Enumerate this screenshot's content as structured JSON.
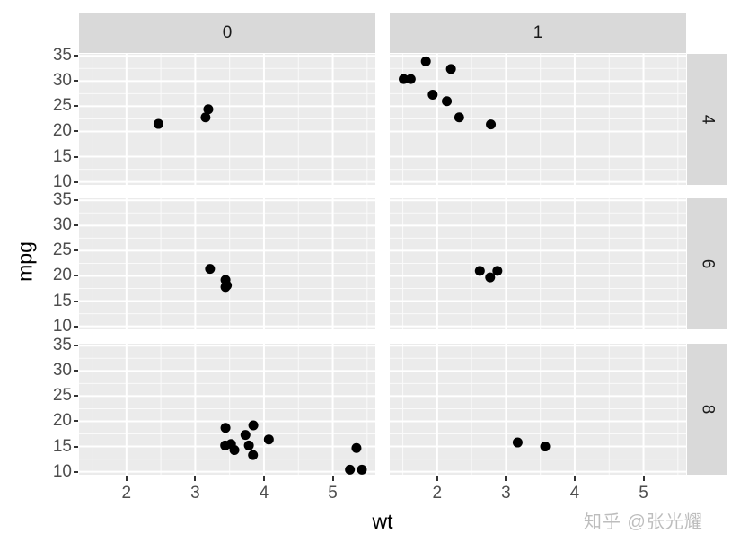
{
  "chart_data": {
    "type": "scatter",
    "title": "",
    "xlabel": "wt",
    "ylabel": "mpg",
    "xlim": [
      1.31,
      5.62
    ],
    "ylim": [
      9.4,
      35.4
    ],
    "x_ticks": [
      2,
      3,
      4,
      5
    ],
    "y_ticks": [
      10,
      15,
      20,
      25,
      30,
      35
    ],
    "grid": true,
    "facet_cols": [
      "0",
      "1"
    ],
    "facet_rows": [
      "4",
      "6",
      "8"
    ],
    "panels": [
      {
        "col": "0",
        "row": "4",
        "points": [
          [
            2.465,
            21.5
          ],
          [
            3.19,
            24.4
          ],
          [
            3.15,
            22.8
          ]
        ]
      },
      {
        "col": "1",
        "row": "4",
        "points": [
          [
            2.32,
            22.8
          ],
          [
            2.2,
            32.4
          ],
          [
            1.615,
            30.4
          ],
          [
            1.835,
            33.9
          ],
          [
            1.935,
            27.3
          ],
          [
            2.14,
            26.0
          ],
          [
            1.513,
            30.4
          ],
          [
            2.78,
            21.4
          ]
        ]
      },
      {
        "col": "0",
        "row": "6",
        "points": [
          [
            3.215,
            21.4
          ],
          [
            3.46,
            18.1
          ],
          [
            3.44,
            19.2
          ],
          [
            3.44,
            17.8
          ]
        ]
      },
      {
        "col": "1",
        "row": "6",
        "points": [
          [
            2.62,
            21.0
          ],
          [
            2.875,
            21.0
          ],
          [
            2.77,
            19.7
          ]
        ]
      },
      {
        "col": "0",
        "row": "8",
        "points": [
          [
            3.44,
            18.7
          ],
          [
            3.57,
            14.3
          ],
          [
            4.07,
            16.4
          ],
          [
            3.73,
            17.3
          ],
          [
            3.78,
            15.2
          ],
          [
            5.25,
            10.4
          ],
          [
            5.424,
            10.4
          ],
          [
            5.345,
            14.7
          ],
          [
            3.52,
            15.5
          ],
          [
            3.435,
            15.2
          ],
          [
            3.84,
            13.3
          ],
          [
            3.845,
            19.2
          ]
        ]
      },
      {
        "col": "1",
        "row": "8",
        "points": [
          [
            3.17,
            15.8
          ],
          [
            3.57,
            15.0
          ]
        ]
      }
    ]
  },
  "labels": {
    "x_axis": "wt",
    "y_axis": "mpg",
    "strip_top": [
      "0",
      "1"
    ],
    "strip_right": [
      "4",
      "6",
      "8"
    ],
    "x_ticks": [
      "2",
      "3",
      "4",
      "5"
    ],
    "y_ticks": [
      "35",
      "30",
      "25",
      "20",
      "15",
      "10"
    ],
    "watermark": "知乎 @张光耀"
  },
  "colors": {
    "panel_bg": "#ebebeb",
    "strip_bg": "#d9d9d9",
    "point": "#000000",
    "grid": "#ffffff"
  }
}
